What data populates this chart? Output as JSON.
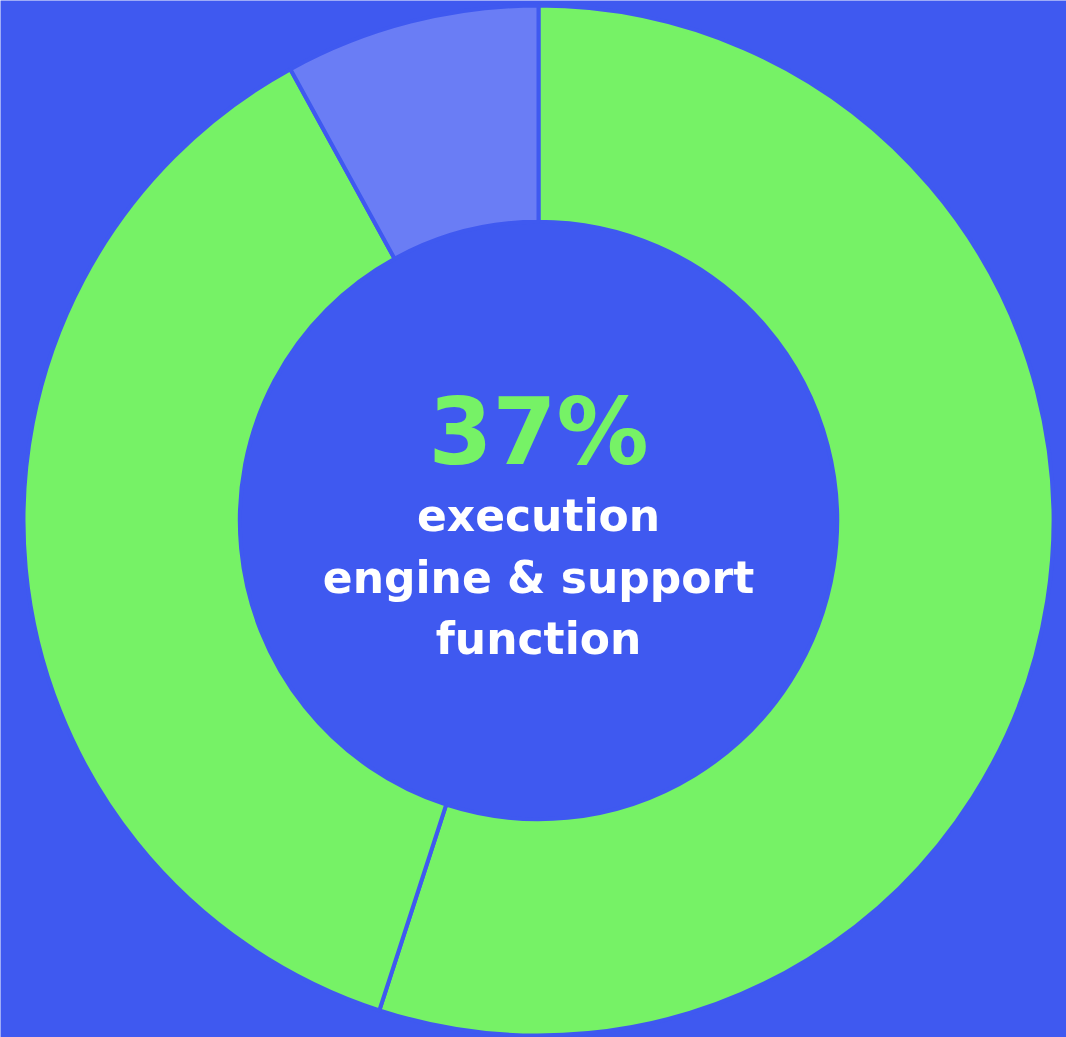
{
  "chart_data": {
    "type": "donut",
    "categories": [
      null,
      null,
      null
    ],
    "values": [
      55,
      37,
      8
    ],
    "colors": [
      "#76f266",
      "#76f266",
      "#6a7df5"
    ],
    "annotations": [
      "37%",
      "execution\nengine & support\nfunction"
    ]
  }
}
